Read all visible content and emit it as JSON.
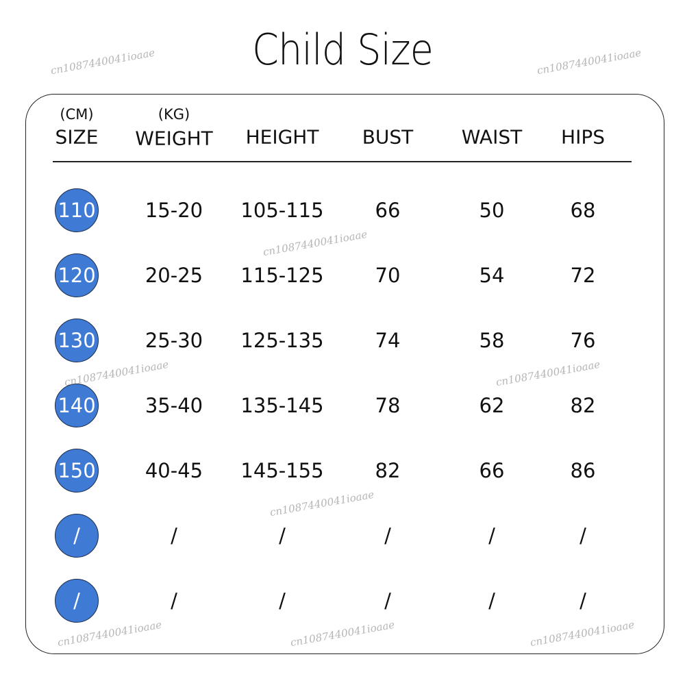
{
  "title": "Child Size",
  "headers": [
    {
      "unit": "(CM)",
      "label": "SIZE"
    },
    {
      "unit": "(KG)",
      "label": "WEIGHT"
    },
    {
      "unit": "",
      "label": "HEIGHT"
    },
    {
      "unit": "",
      "label": "BUST"
    },
    {
      "unit": "",
      "label": "WAIST"
    },
    {
      "unit": "",
      "label": "HIPS"
    }
  ],
  "rows": [
    [
      "110",
      "15-20",
      "105-115",
      "66",
      "50",
      "68"
    ],
    [
      "120",
      "20-25",
      "115-125",
      "70",
      "54",
      "72"
    ],
    [
      "130",
      "25-30",
      "125-135",
      "74",
      "58",
      "76"
    ],
    [
      "140",
      "35-40",
      "135-145",
      "78",
      "62",
      "82"
    ],
    [
      "150",
      "40-45",
      "145-155",
      "82",
      "66",
      "86"
    ],
    [
      "/",
      "/",
      "/",
      "/",
      "/",
      "/"
    ],
    [
      "/",
      "/",
      "/",
      "/",
      "/",
      "/"
    ]
  ],
  "watermark": "cn1087440041ioaae",
  "colors": {
    "size_badge": "#3f7ad4",
    "text": "#111111"
  }
}
